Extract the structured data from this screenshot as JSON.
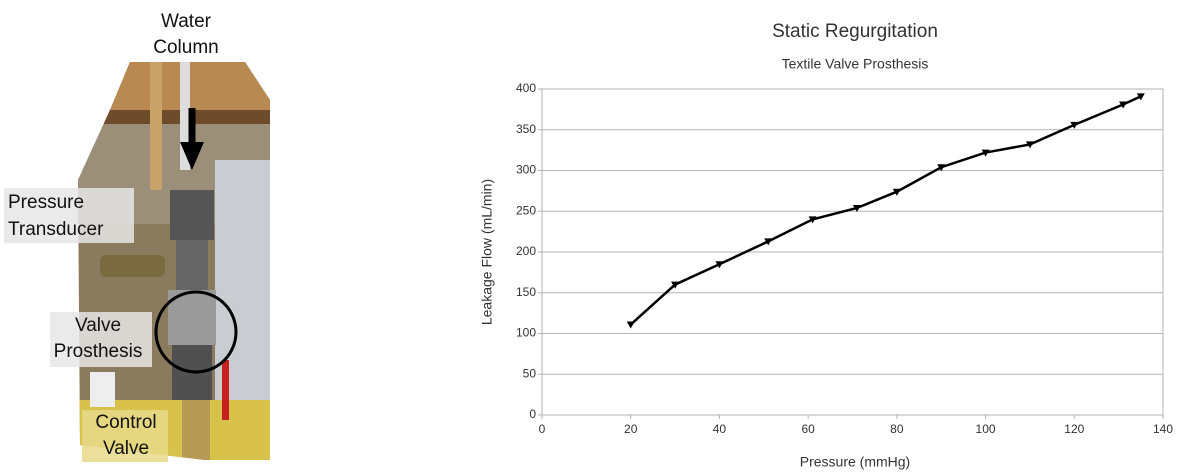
{
  "photo": {
    "labels": [
      [
        "Water",
        "Column"
      ],
      [
        "Pressure",
        "Transducer"
      ],
      [
        "Valve",
        "Prosthesis"
      ],
      [
        "Control",
        "Valve"
      ]
    ]
  },
  "chart_data": {
    "type": "line",
    "title": "Static Regurgitation",
    "subtitle": "Textile Valve Prosthesis",
    "x_label": "Pressure (mmHg)",
    "y_label": "Leakage Flow (mL/min)",
    "x": [
      20,
      30,
      40,
      51,
      61,
      71,
      80,
      90,
      100,
      110,
      120,
      131,
      135
    ],
    "series": [
      {
        "name": "Leakage Flow",
        "color": "#000000",
        "values": [
          111,
          160,
          185,
          213,
          240,
          254,
          274,
          304,
          322,
          332,
          356,
          381,
          391
        ]
      }
    ],
    "xlim": [
      0,
      140
    ],
    "xticks": [
      0,
      20,
      40,
      60,
      80,
      100,
      120,
      140
    ],
    "ylim": [
      0,
      400
    ],
    "yticks": [
      0,
      50,
      100,
      150,
      200,
      250,
      300,
      350,
      400
    ],
    "grid": true
  }
}
